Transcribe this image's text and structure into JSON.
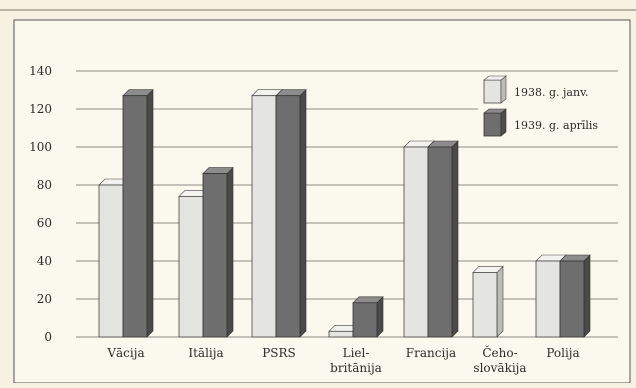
{
  "top_fragment": "",
  "chart_data": {
    "type": "bar",
    "title": "",
    "xlabel": "",
    "ylabel": "",
    "ylim": [
      0,
      140
    ],
    "yticks": [
      "0",
      "20",
      "40",
      "60",
      "80",
      "100",
      "120",
      "140"
    ],
    "categories": [
      [
        "Vācija"
      ],
      [
        "Itālija"
      ],
      [
        "PSRS"
      ],
      [
        "Liel-",
        "britānija"
      ],
      [
        "Francija"
      ],
      [
        "Čeho-",
        "slovākija"
      ],
      [
        "Polija"
      ]
    ],
    "series": [
      {
        "name": "1938. g. janv.",
        "color": "#e4e4e0",
        "values": [
          80,
          74,
          127,
          3,
          100,
          34,
          40
        ]
      },
      {
        "name": "1939. g. aprīlis",
        "color": "#6e6e6e",
        "values": [
          127,
          86,
          127,
          18,
          100,
          0,
          40
        ]
      }
    ],
    "grid": true,
    "legend": "top-right"
  }
}
